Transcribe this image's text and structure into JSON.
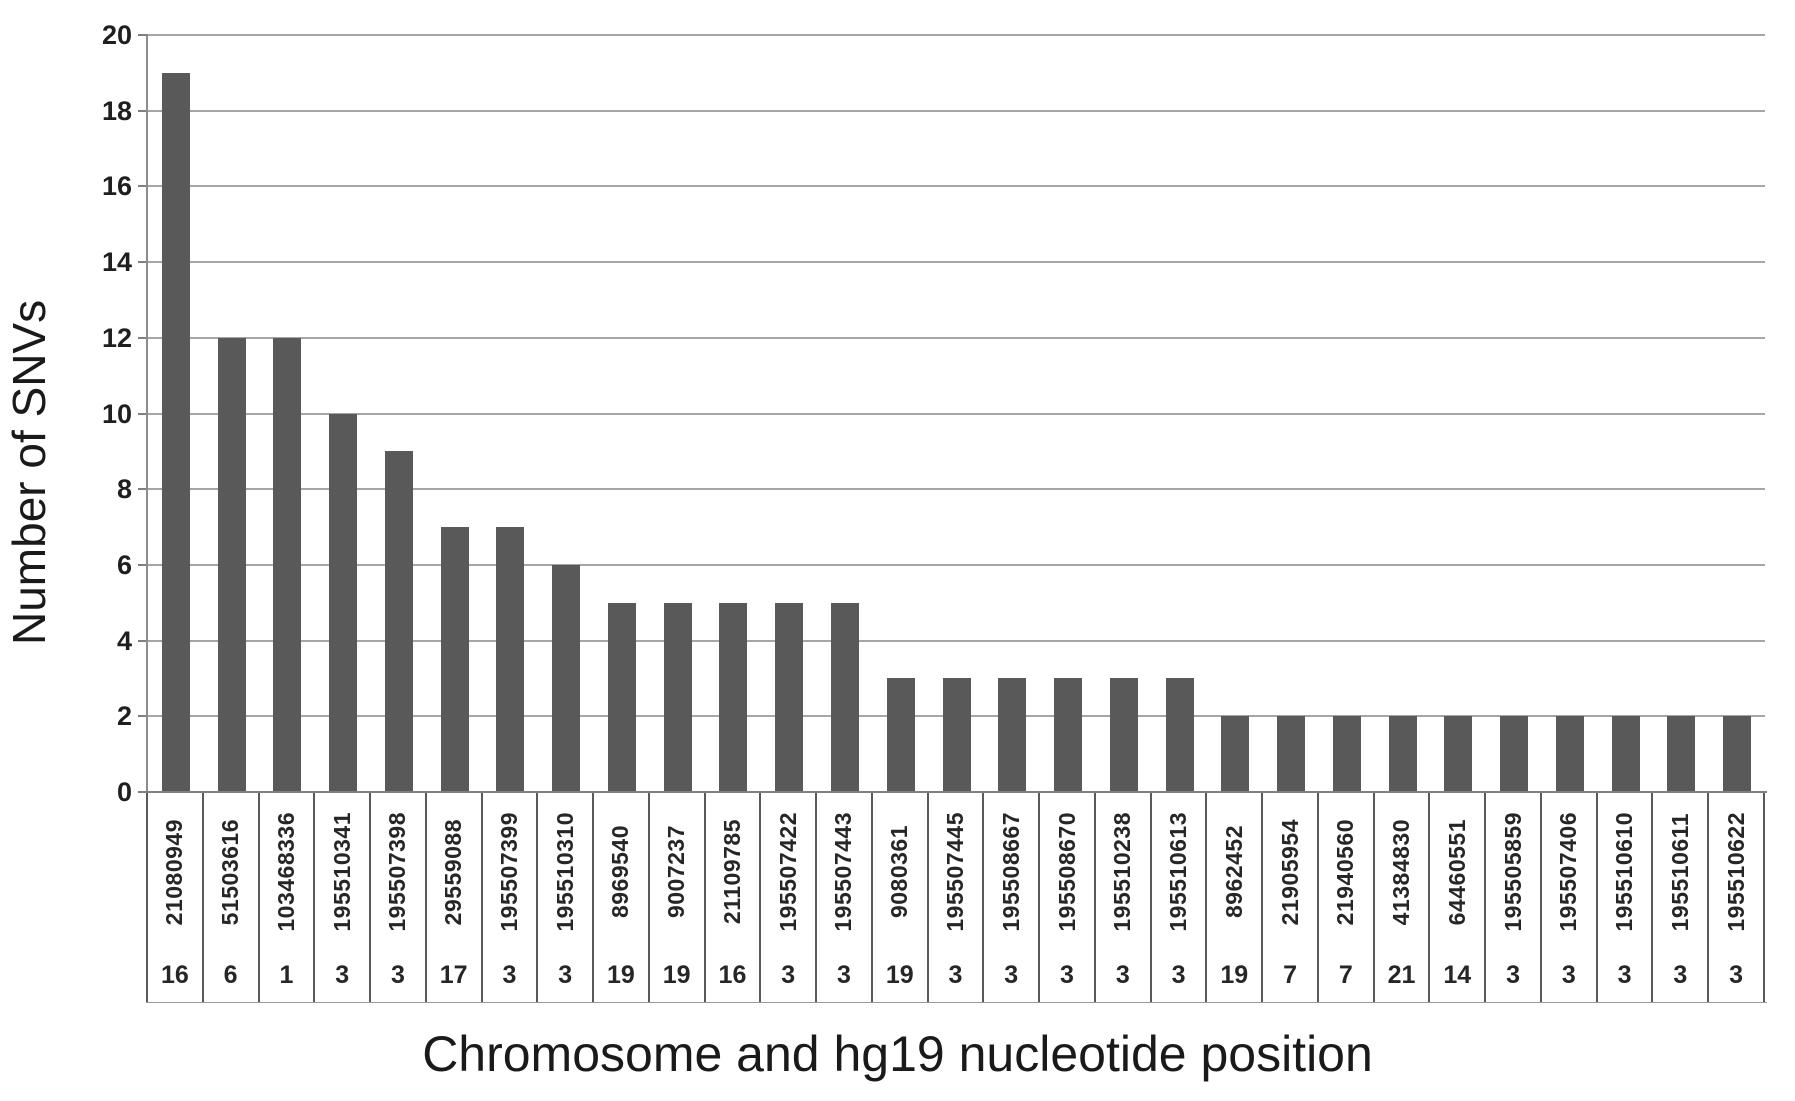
{
  "chart_data": {
    "type": "bar",
    "title": "",
    "xlabel": "Chromosome and hg19 nucleotide position",
    "ylabel": "Number of SNVs",
    "ylim": [
      0,
      20
    ],
    "ytick_step": 2,
    "grid": "horizontal",
    "legend": "none",
    "bar_color": "#595959",
    "gridline_color": "#a6a6a6",
    "axis_color": "#808080",
    "categories": [
      "21080949",
      "51503616",
      "103468336",
      "195510341",
      "195507398",
      "29559088",
      "195507399",
      "195510310",
      "8969540",
      "9007237",
      "21109785",
      "195507422",
      "195507443",
      "9080361",
      "195507445",
      "195508667",
      "195508670",
      "195510238",
      "195510613",
      "8962452",
      "21905954",
      "21940560",
      "41384830",
      "64460551",
      "195505859",
      "195507406",
      "195510610",
      "195510611",
      "195510622"
    ],
    "chromosomes": [
      "16",
      "6",
      "1",
      "3",
      "3",
      "17",
      "3",
      "3",
      "19",
      "19",
      "16",
      "3",
      "3",
      "19",
      "3",
      "3",
      "3",
      "3",
      "3",
      "19",
      "7",
      "7",
      "21",
      "14",
      "3",
      "3",
      "3",
      "3",
      "3"
    ],
    "values": [
      19,
      12,
      12,
      10,
      9,
      7,
      7,
      6,
      5,
      5,
      5,
      5,
      5,
      3,
      3,
      3,
      3,
      3,
      3,
      2,
      2,
      2,
      2,
      2,
      2,
      2,
      2,
      2,
      2
    ]
  }
}
